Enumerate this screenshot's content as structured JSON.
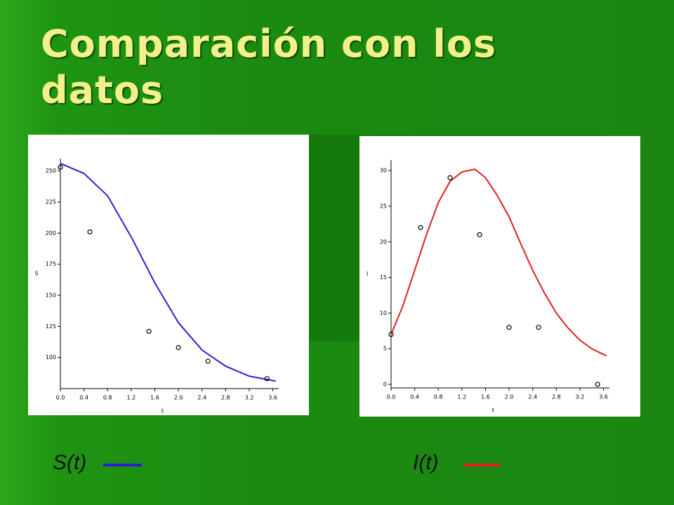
{
  "title": "Comparación con los datos",
  "chart_data": [
    {
      "type": "line",
      "xlabel": "t",
      "ylabel": "S",
      "xlim": [
        0,
        3.7
      ],
      "ylim": [
        75,
        260
      ],
      "xticks": [
        {
          "value": 0,
          "label": "0.0"
        },
        0.4,
        0.8,
        1.2,
        1.6,
        {
          "value": 2,
          "label": "2.0"
        },
        2.4,
        2.8,
        3.2,
        3.6
      ],
      "yticks": [
        100,
        125,
        150,
        175,
        200,
        225,
        250
      ],
      "series": [
        {
          "name": "S(t)",
          "color": "#2b1fd6",
          "x": [
            0,
            0.4,
            0.8,
            1.2,
            1.6,
            2.0,
            2.4,
            2.8,
            3.2,
            3.65
          ],
          "values": [
            256,
            248,
            230,
            197,
            160,
            128,
            106,
            93,
            85,
            81
          ]
        },
        {
          "type": "scatter",
          "color": "#000000",
          "x": [
            0,
            0.5,
            1.5,
            2.0,
            2.5,
            3.5
          ],
          "values": [
            253,
            201,
            121,
            108,
            97,
            83
          ]
        }
      ]
    },
    {
      "type": "line",
      "xlabel": "t",
      "ylabel": "I",
      "xlim": [
        0,
        3.7
      ],
      "ylim": [
        -0.5,
        31.5
      ],
      "xticks": [
        {
          "value": 0,
          "label": "0.0"
        },
        0.4,
        0.8,
        1.2,
        1.6,
        {
          "value": 2,
          "label": "2.0"
        },
        2.4,
        2.8,
        3.2,
        3.6
      ],
      "yticks": [
        0,
        5,
        10,
        15,
        20,
        25,
        30
      ],
      "series": [
        {
          "name": "I(t)",
          "color": "#e0201c",
          "x": [
            0,
            0.2,
            0.4,
            0.6,
            0.8,
            1.0,
            1.2,
            1.42,
            1.6,
            1.8,
            2.0,
            2.2,
            2.4,
            2.6,
            2.8,
            3.0,
            3.2,
            3.4,
            3.65
          ],
          "values": [
            7,
            11,
            16,
            21,
            25.5,
            28.5,
            29.8,
            30.2,
            29,
            26.5,
            23.5,
            19.7,
            16,
            12.8,
            10,
            7.9,
            6.2,
            5,
            4
          ]
        },
        {
          "type": "scatter",
          "color": "#000000",
          "x": [
            0,
            0.5,
            1.0,
            1.5,
            2.0,
            2.5,
            3.5
          ],
          "values": [
            7,
            22,
            29,
            21,
            8,
            8,
            0
          ]
        }
      ]
    }
  ]
}
